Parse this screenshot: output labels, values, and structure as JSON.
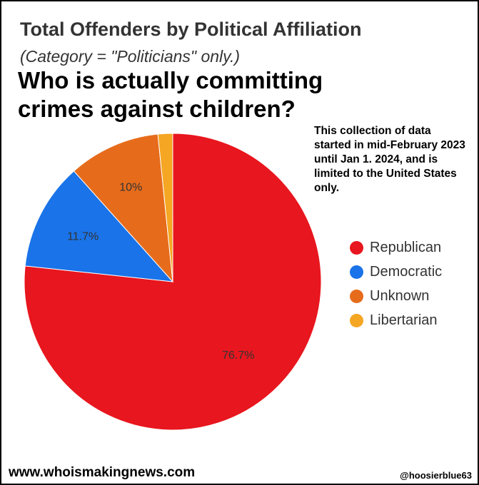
{
  "chart_data": {
    "type": "pie",
    "title": "Total Offenders by Political Affiliation",
    "subtitle": "(Category = \"Politicians\" only.)",
    "categories": [
      "Republican",
      "Democratic",
      "Unknown",
      "Libertarian"
    ],
    "values": [
      76.7,
      11.7,
      10,
      1.6
    ],
    "data_labels": [
      "76.7%",
      "11.7%",
      "10%",
      ""
    ],
    "colors": [
      "#e8161e",
      "#1a73e8",
      "#e66c1c",
      "#f5a623"
    ],
    "legend_position": "right"
  },
  "headline": "Who is actually committing crimes against children?",
  "note": "This collection of data started in mid-February 2023 until Jan 1. 2024, and is limited to the United States only.",
  "footer": {
    "website": "www.whoismakingnews.com",
    "handle": "@hoosierblue63"
  }
}
